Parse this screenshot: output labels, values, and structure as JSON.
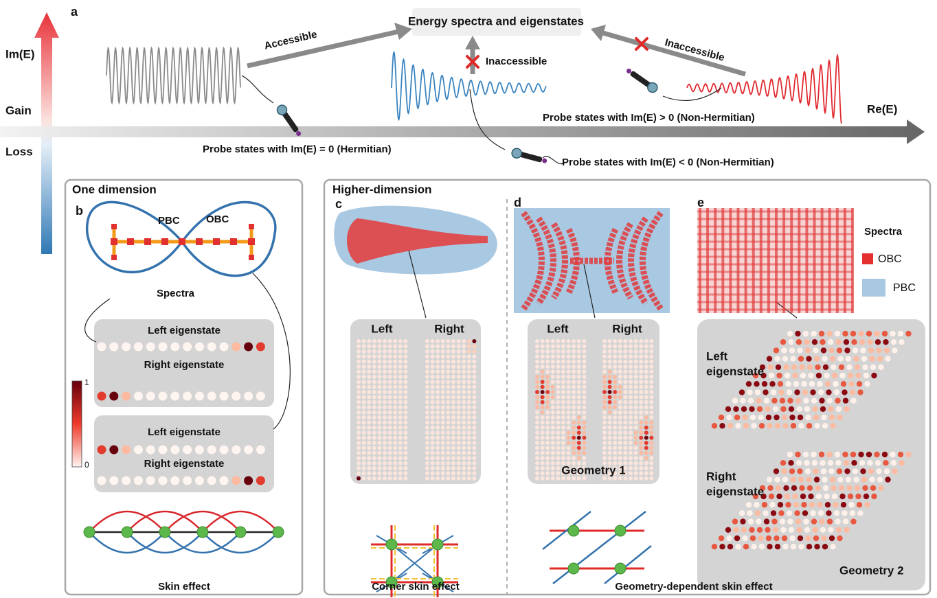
{
  "panel_a": {
    "label": "a",
    "title": "Energy spectra and eigenstates",
    "im_axis": "Im(E)",
    "re_axis": "Re(E)",
    "gain": "Gain",
    "loss": "Loss",
    "arrows": [
      "Accessible",
      "Inaccessible",
      "Inaccessible"
    ],
    "probes": [
      "Probe states with Im(E) = 0 (Hermitian)",
      "Probe states with Im(E) < 0 (Non-Hermitian)",
      "Probe states with Im(E) > 0 (Non-Hermitian)"
    ]
  },
  "panel_b": {
    "section": "One dimension",
    "label": "b",
    "pbc": "PBC",
    "obc": "OBC",
    "spectra": "Spectra",
    "boxes": [
      {
        "left": "Left eigenstate",
        "right": "Right eigenstate"
      },
      {
        "left": "Left eigenstate",
        "right": "Right eigenstate"
      }
    ],
    "colorbar": {
      "max": 1,
      "min": 0
    },
    "caption": "Skin effect"
  },
  "higher": {
    "section": "Higher-dimension",
    "caption": "Geometry-dependent skin effect"
  },
  "panel_c": {
    "label": "c",
    "left": "Left",
    "right": "Right",
    "caption": "Corner skin effect"
  },
  "panel_d": {
    "label": "d",
    "left": "Left",
    "right": "Right",
    "geometry": "Geometry 1"
  },
  "panel_e": {
    "label": "e",
    "legend_title": "Spectra",
    "obc": "OBC",
    "pbc": "PBC",
    "left": [
      "Left",
      "eigenstate"
    ],
    "right": [
      "Right",
      "eigenstate"
    ],
    "geometry": "Geometry 2"
  }
}
